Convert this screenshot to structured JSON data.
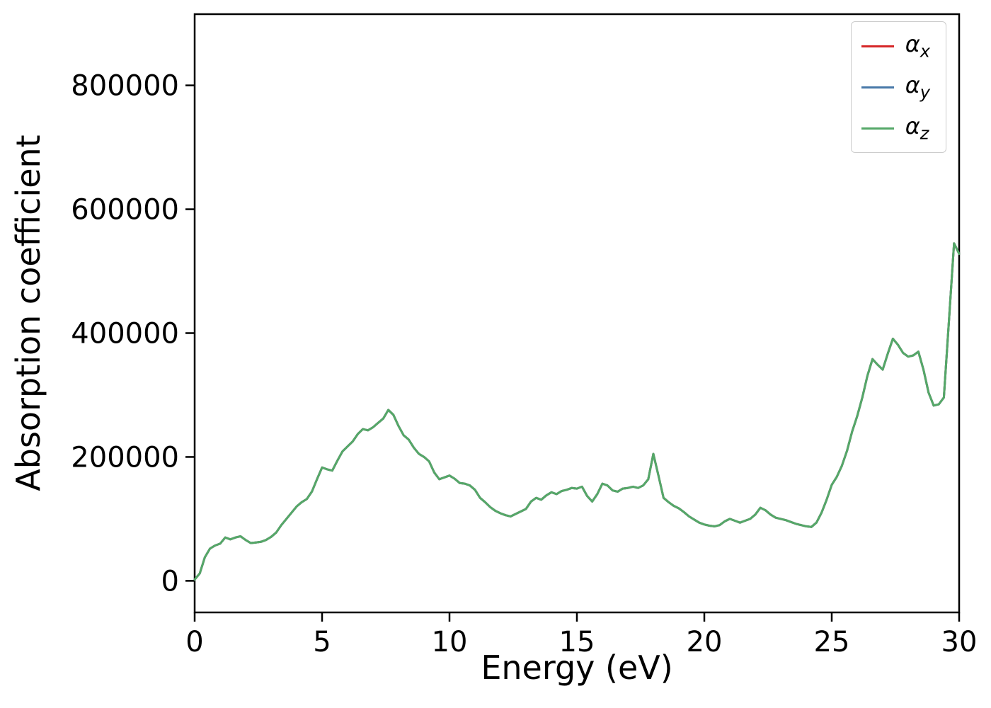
{
  "chart_data": {
    "type": "line",
    "title": "",
    "xlabel": "Energy (eV)",
    "ylabel": "Absorption coefficient",
    "xlim": [
      0,
      30
    ],
    "ylim": [
      -51000,
      915000
    ],
    "xticks": [
      0,
      5,
      10,
      15,
      20,
      25,
      30
    ],
    "yticks": [
      0,
      200000,
      400000,
      600000,
      800000
    ],
    "grid": false,
    "legend_position": "upper right",
    "note": "All three series overlap exactly; only the last-drawn green curve is visible.",
    "x": {
      "start": 0,
      "step": 0.2,
      "count": 151
    },
    "y_shared": [
      2000,
      12000,
      38000,
      52000,
      57000,
      60000,
      70000,
      67000,
      70000,
      72000,
      66000,
      61000,
      62000,
      63000,
      66000,
      71000,
      78000,
      90000,
      100000,
      110000,
      120000,
      127000,
      132000,
      144000,
      164000,
      183000,
      180000,
      178000,
      194000,
      209000,
      217000,
      225000,
      237000,
      245000,
      243000,
      248000,
      255000,
      262000,
      276000,
      268000,
      250000,
      235000,
      228000,
      215000,
      205000,
      200000,
      193000,
      175000,
      164000,
      167000,
      170000,
      165000,
      158000,
      157000,
      154000,
      147000,
      134000,
      127000,
      119000,
      113000,
      109000,
      106000,
      104000,
      108000,
      112000,
      116000,
      128000,
      134000,
      131000,
      138000,
      143000,
      140000,
      145000,
      147000,
      150000,
      149000,
      152000,
      137000,
      128000,
      140000,
      157000,
      154000,
      146000,
      144000,
      149000,
      150000,
      152000,
      150000,
      154000,
      164000,
      205000,
      170000,
      134000,
      127000,
      121000,
      117000,
      111000,
      104000,
      99000,
      94000,
      91000,
      89000,
      88000,
      90000,
      96000,
      100000,
      97000,
      94000,
      97000,
      100000,
      107000,
      118000,
      114000,
      107000,
      102000,
      100000,
      98000,
      95000,
      92000,
      90000,
      88000,
      87000,
      94000,
      110000,
      131000,
      155000,
      168000,
      186000,
      210000,
      241000,
      266000,
      296000,
      331000,
      358000,
      349000,
      341000,
      367000,
      391000,
      381000,
      368000,
      362000,
      364000,
      370000,
      341000,
      304000,
      283000,
      285000,
      296000,
      420000,
      545000,
      528000
    ],
    "series": [
      {
        "symbol": "α",
        "sub": "x",
        "color": "#d62728"
      },
      {
        "symbol": "α",
        "sub": "y",
        "color": "#4878a8"
      },
      {
        "symbol": "α",
        "sub": "z",
        "color": "#55a868"
      }
    ]
  },
  "colors": {
    "axis": "#000000",
    "background": "#ffffff",
    "legend_border": "#cccccc"
  }
}
